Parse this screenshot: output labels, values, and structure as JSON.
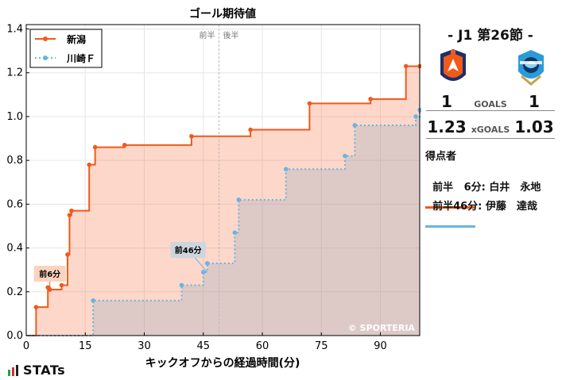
{
  "chart_data": {
    "type": "line",
    "title": "ゴール期待値",
    "xlabel": "キックオフからの経過時間(分)",
    "ylabel": "",
    "xlim": [
      0,
      100
    ],
    "ylim": [
      0,
      1.42
    ],
    "x_ticks": [
      0,
      15,
      30,
      45,
      60,
      75,
      90
    ],
    "y_ticks": [
      0.0,
      0.2,
      0.4,
      0.6,
      0.8,
      1.0,
      1.2,
      1.4
    ],
    "y_tick_labels": [
      "0.0",
      "0.2",
      "0.4",
      "0.6",
      "0.8",
      "1.0",
      "1.2",
      "1.4"
    ],
    "step": true,
    "halftime_x": 49,
    "halftime_labels": [
      "前半",
      "後半"
    ],
    "grid": true,
    "legend_position": "top-left",
    "watermark": "© SPORTERIA",
    "series": [
      {
        "name": "新潟",
        "color": "#f05a1a",
        "fill": "rgba(246,112,64,0.28)",
        "line_style": "solid",
        "x": [
          0,
          2.5,
          5.5,
          6,
          9,
          10.5,
          11,
          11.5,
          16,
          17.5,
          25,
          42,
          57,
          72,
          87.5,
          96.5,
          100
        ],
        "y": [
          0,
          0.13,
          0.22,
          0.21,
          0.23,
          0.37,
          0.55,
          0.57,
          0.78,
          0.86,
          0.87,
          0.91,
          0.94,
          1.06,
          1.08,
          1.23,
          1.23
        ]
      },
      {
        "name": "川崎Ｆ",
        "color": "#6ab4e2",
        "fill": "rgba(150,170,190,0.30)",
        "line_style": "dotted",
        "x": [
          0,
          17,
          39.5,
          45,
          46,
          53,
          54,
          66,
          81,
          83.5,
          99,
          100
        ],
        "y": [
          0,
          0.16,
          0.23,
          0.29,
          0.33,
          0.47,
          0.62,
          0.76,
          0.82,
          0.96,
          1.0,
          1.03
        ]
      }
    ],
    "annotations": [
      {
        "text": "前6分",
        "series": 0,
        "x": 6,
        "y": 0.21
      },
      {
        "text": "前46分",
        "series": 1,
        "x": 46,
        "y": 0.29
      }
    ]
  },
  "match": {
    "title": "-  J1 第26節  -",
    "home_goals": "1",
    "away_goals": "1",
    "goals_label": "GOALS",
    "home_xg": "1.23",
    "away_xg": "1.03",
    "xg_label": "xGOALS",
    "home_color": "#f05a1a",
    "away_color": "#6ab4e2"
  },
  "scorers": {
    "title": "得点者",
    "items": [
      {
        "text": "前半   6分: 白井　永地",
        "team": "home"
      },
      {
        "text": "前半46分: 伊藤　達哉",
        "team": "away"
      }
    ]
  },
  "brand": {
    "name": "STATs"
  }
}
